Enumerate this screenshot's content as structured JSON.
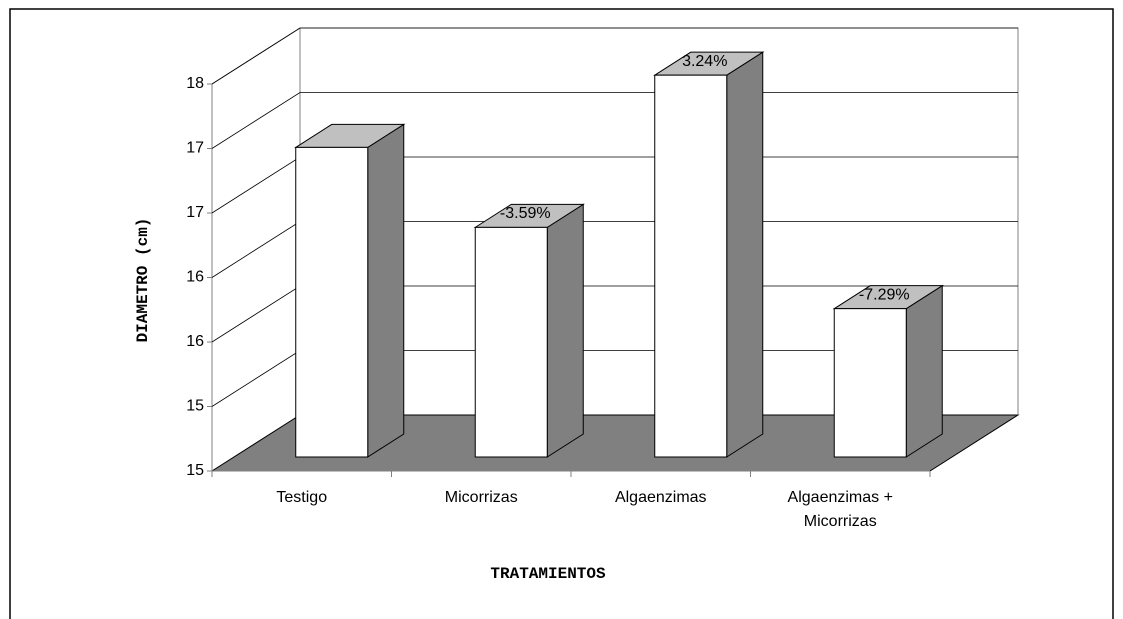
{
  "chart_data": {
    "type": "bar3d",
    "categories": [
      [
        "Testigo"
      ],
      [
        "Micorrizas"
      ],
      [
        "Algaenzimas"
      ],
      [
        "Algaenzimas +",
        "Micorrizas"
      ]
    ],
    "values": [
      17.15,
      16.53,
      17.71,
      15.9
    ],
    "annotations": [
      {
        "category": 1,
        "text": "-3.59%"
      },
      {
        "category": 2,
        "text": "3.24%"
      },
      {
        "category": 3,
        "text": "-7.29%"
      }
    ],
    "x_label": "TRATAMIENTOS",
    "y_label": "DIAMETRO (cm)",
    "ylim": [
      14.75,
      17.75
    ],
    "yticks": [
      {
        "value": 14.75,
        "label": "15"
      },
      {
        "value": 15.25,
        "label": "15"
      },
      {
        "value": 15.75,
        "label": "16"
      },
      {
        "value": 16.25,
        "label": "16"
      },
      {
        "value": 16.75,
        "label": "17"
      },
      {
        "value": 17.25,
        "label": "17"
      },
      {
        "value": 17.75,
        "label": "18"
      }
    ],
    "color": "#ffffff",
    "side_color": "#808080",
    "top_color": "#c0c0c0",
    "floor_color": "#808080",
    "grid": true
  }
}
